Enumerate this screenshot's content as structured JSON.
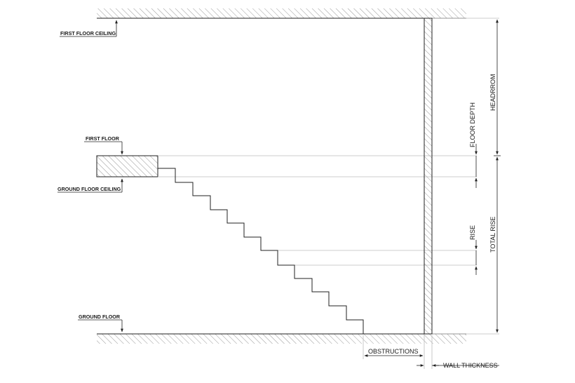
{
  "labels": {
    "first_floor_ceiling": "FIRST FLOOR CEILING",
    "first_floor": "FIRST FLOOR",
    "ground_floor_ceiling": "GROUND FLOOR CEILING",
    "ground_floor": "GROUND FLOOR",
    "obstructions": "OBSTRUCTIONS",
    "wall_thickness": "WALL THICKNESS",
    "headroom": "HEADRROM",
    "floor_depth": "FLOOR DEPTH",
    "rise": "RISE",
    "total_rise": "TOTAL RISE"
  },
  "colors": {
    "line": "#222222",
    "guide": "#b8b8b8",
    "hatch": "#9a9a9a"
  }
}
